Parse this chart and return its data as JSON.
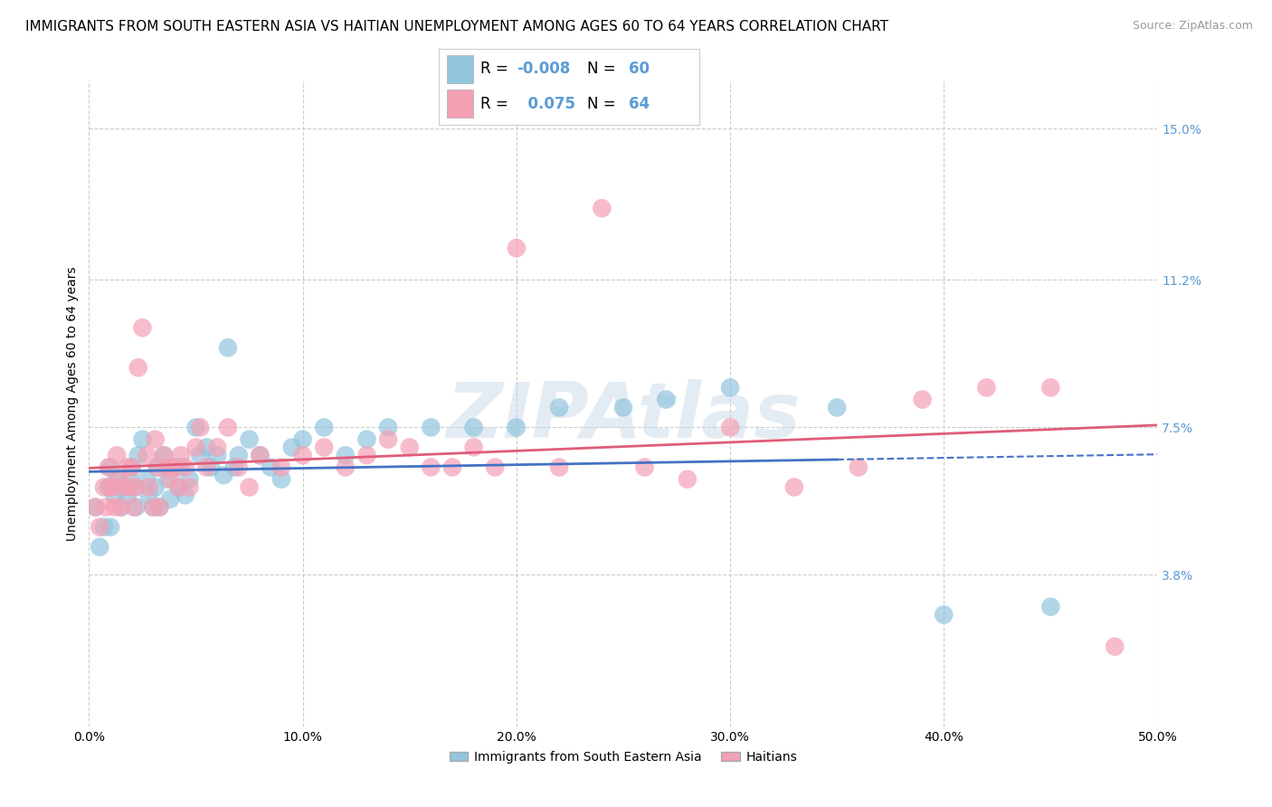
{
  "title": "IMMIGRANTS FROM SOUTH EASTERN ASIA VS HAITIAN UNEMPLOYMENT AMONG AGES 60 TO 64 YEARS CORRELATION CHART",
  "source": "Source: ZipAtlas.com",
  "ylabel": "Unemployment Among Ages 60 to 64 years",
  "xlim": [
    0.0,
    0.5
  ],
  "ylim": [
    0.0,
    0.162
  ],
  "xtick_labels": [
    "0.0%",
    "",
    "",
    "",
    "",
    "",
    "",
    "",
    "",
    "",
    "10.0%",
    "",
    "",
    "",
    "",
    "",
    "",
    "",
    "",
    "",
    "20.0%",
    "",
    "",
    "",
    "",
    "",
    "",
    "",
    "",
    "",
    "30.0%",
    "",
    "",
    "",
    "",
    "",
    "",
    "",
    "",
    "",
    "40.0%",
    "",
    "",
    "",
    "",
    "",
    "",
    "",
    "",
    "",
    "50.0%"
  ],
  "xtick_vals": [
    0.0,
    0.01,
    0.02,
    0.03,
    0.04,
    0.05,
    0.06,
    0.07,
    0.08,
    0.09,
    0.1,
    0.11,
    0.12,
    0.13,
    0.14,
    0.15,
    0.16,
    0.17,
    0.18,
    0.19,
    0.2,
    0.21,
    0.22,
    0.23,
    0.24,
    0.25,
    0.26,
    0.27,
    0.28,
    0.29,
    0.3,
    0.31,
    0.32,
    0.33,
    0.34,
    0.35,
    0.36,
    0.37,
    0.38,
    0.39,
    0.4,
    0.41,
    0.42,
    0.43,
    0.44,
    0.45,
    0.46,
    0.47,
    0.48,
    0.49,
    0.5
  ],
  "xtick_major": [
    0.0,
    0.1,
    0.2,
    0.3,
    0.4,
    0.5
  ],
  "xtick_major_labels": [
    "0.0%",
    "10.0%",
    "20.0%",
    "30.0%",
    "40.0%",
    "50.0%"
  ],
  "ytick_labels": [
    "3.8%",
    "7.5%",
    "11.2%",
    "15.0%"
  ],
  "ytick_vals": [
    0.038,
    0.075,
    0.112,
    0.15
  ],
  "grid_color": "#cccccc",
  "background_color": "#ffffff",
  "watermark": "ZIPAtlas",
  "legend_color": "#5b9bd5",
  "series": [
    {
      "name": "Immigrants from South Eastern Asia",
      "R": -0.008,
      "N": 60,
      "color": "#92c5de",
      "trend_color": "#4472c4",
      "trend_dash_solid_end": 0.35,
      "x": [
        0.003,
        0.005,
        0.007,
        0.009,
        0.01,
        0.01,
        0.012,
        0.013,
        0.015,
        0.016,
        0.018,
        0.019,
        0.02,
        0.021,
        0.022,
        0.023,
        0.025,
        0.027,
        0.028,
        0.03,
        0.031,
        0.032,
        0.033,
        0.035,
        0.037,
        0.038,
        0.04,
        0.042,
        0.043,
        0.045,
        0.047,
        0.05,
        0.052,
        0.055,
        0.057,
        0.06,
        0.063,
        0.065,
        0.068,
        0.07,
        0.075,
        0.08,
        0.085,
        0.09,
        0.095,
        0.1,
        0.11,
        0.12,
        0.13,
        0.14,
        0.16,
        0.18,
        0.2,
        0.22,
        0.25,
        0.27,
        0.3,
        0.35,
        0.4,
        0.45
      ],
      "y": [
        0.055,
        0.045,
        0.05,
        0.06,
        0.065,
        0.05,
        0.058,
        0.062,
        0.055,
        0.06,
        0.058,
        0.062,
        0.065,
        0.06,
        0.055,
        0.068,
        0.072,
        0.062,
        0.058,
        0.055,
        0.06,
        0.065,
        0.055,
        0.068,
        0.062,
        0.057,
        0.065,
        0.06,
        0.065,
        0.058,
        0.062,
        0.075,
        0.068,
        0.07,
        0.065,
        0.068,
        0.063,
        0.095,
        0.065,
        0.068,
        0.072,
        0.068,
        0.065,
        0.062,
        0.07,
        0.072,
        0.075,
        0.068,
        0.072,
        0.075,
        0.075,
        0.075,
        0.075,
        0.08,
        0.08,
        0.082,
        0.085,
        0.08,
        0.028,
        0.03
      ]
    },
    {
      "name": "Haitians",
      "R": 0.075,
      "N": 64,
      "color": "#f4a0b5",
      "trend_color": "#e05c7a",
      "trend_dash_solid_end": 0.5,
      "x": [
        0.003,
        0.005,
        0.007,
        0.008,
        0.009,
        0.01,
        0.011,
        0.012,
        0.013,
        0.014,
        0.015,
        0.016,
        0.018,
        0.019,
        0.02,
        0.021,
        0.022,
        0.023,
        0.025,
        0.027,
        0.028,
        0.03,
        0.031,
        0.032,
        0.033,
        0.035,
        0.037,
        0.038,
        0.04,
        0.042,
        0.043,
        0.045,
        0.047,
        0.05,
        0.052,
        0.055,
        0.06,
        0.065,
        0.07,
        0.075,
        0.08,
        0.09,
        0.1,
        0.11,
        0.12,
        0.13,
        0.14,
        0.15,
        0.16,
        0.17,
        0.18,
        0.19,
        0.2,
        0.22,
        0.24,
        0.26,
        0.28,
        0.3,
        0.33,
        0.36,
        0.39,
        0.42,
        0.45,
        0.48
      ],
      "y": [
        0.055,
        0.05,
        0.06,
        0.055,
        0.065,
        0.06,
        0.06,
        0.055,
        0.068,
        0.062,
        0.055,
        0.06,
        0.065,
        0.06,
        0.065,
        0.055,
        0.06,
        0.09,
        0.1,
        0.068,
        0.06,
        0.055,
        0.072,
        0.065,
        0.055,
        0.068,
        0.065,
        0.062,
        0.065,
        0.06,
        0.068,
        0.065,
        0.06,
        0.07,
        0.075,
        0.065,
        0.07,
        0.075,
        0.065,
        0.06,
        0.068,
        0.065,
        0.068,
        0.07,
        0.065,
        0.068,
        0.072,
        0.07,
        0.065,
        0.065,
        0.07,
        0.065,
        0.12,
        0.065,
        0.13,
        0.065,
        0.062,
        0.075,
        0.06,
        0.065,
        0.082,
        0.085,
        0.085,
        0.02
      ]
    }
  ],
  "title_fontsize": 11,
  "axis_label_fontsize": 10,
  "tick_fontsize": 10,
  "legend_fontsize": 12
}
